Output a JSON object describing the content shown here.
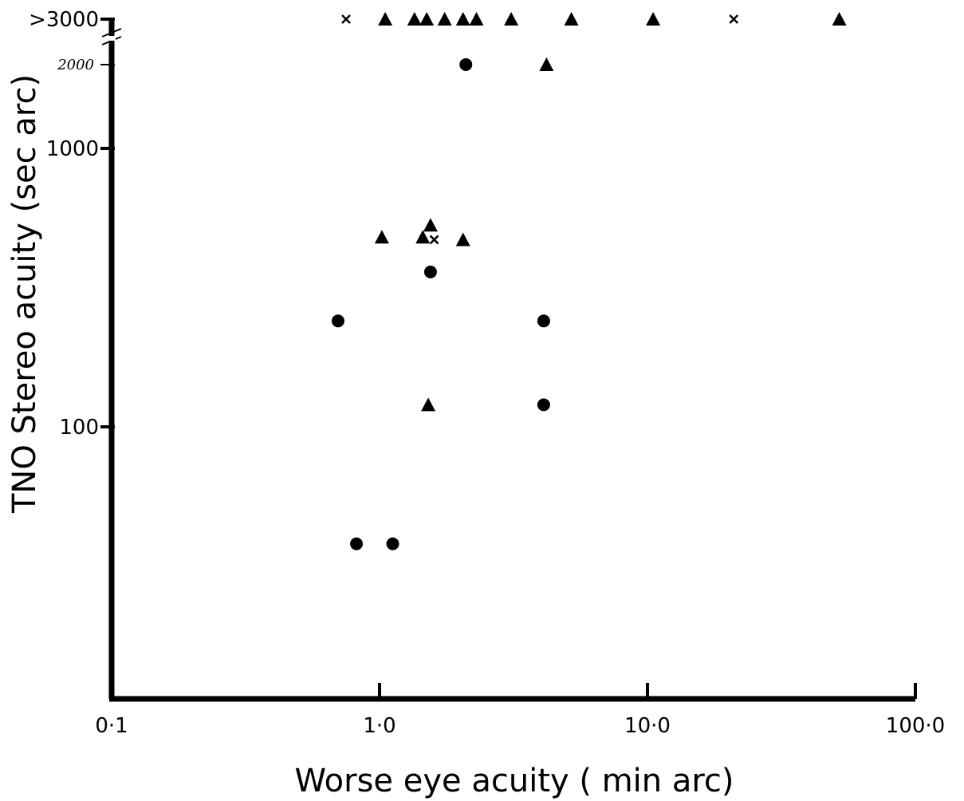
{
  "chart_data": {
    "type": "scatter",
    "title": "",
    "xlabel": "Worse eye acuity ( min arc)",
    "ylabel": "TNO Stereo acuity (sec arc)",
    "x_scale": "log",
    "y_scale": "log",
    "xlim": [
      0.1,
      100
    ],
    "ylim": [
      10,
      3000
    ],
    "x_ticks": [
      {
        "value": 0.1,
        "label": "0·1"
      },
      {
        "value": 1,
        "label": "1·0"
      },
      {
        "value": 10,
        "label": "10·0"
      },
      {
        "value": 100,
        "label": "100·0"
      }
    ],
    "y_ticks": [
      {
        "value": 100,
        "label": "100"
      },
      {
        "value": 1000,
        "label": "1000"
      },
      {
        "value": 2000,
        "label": "2000"
      },
      {
        "value": 3000,
        "label": ">3000"
      }
    ],
    "y_axis_break": true,
    "series": [
      {
        "marker": "circle",
        "points": [
          {
            "x": 2.1,
            "y": 2000
          },
          {
            "x": 1.55,
            "y": 360
          },
          {
            "x": 0.7,
            "y": 240
          },
          {
            "x": 4.1,
            "y": 240
          },
          {
            "x": 4.1,
            "y": 120
          },
          {
            "x": 0.82,
            "y": 38
          },
          {
            "x": 1.12,
            "y": 38
          }
        ]
      },
      {
        "marker": "triangle",
        "points": [
          {
            "x": 1.05,
            "y": 3000
          },
          {
            "x": 1.35,
            "y": 3000
          },
          {
            "x": 1.5,
            "y": 3000
          },
          {
            "x": 1.75,
            "y": 3000
          },
          {
            "x": 2.05,
            "y": 3000
          },
          {
            "x": 2.3,
            "y": 3000
          },
          {
            "x": 3.1,
            "y": 3000
          },
          {
            "x": 5.2,
            "y": 3000
          },
          {
            "x": 10.5,
            "y": 3000
          },
          {
            "x": 52,
            "y": 3000
          },
          {
            "x": 4.2,
            "y": 2000
          },
          {
            "x": 1.02,
            "y": 480
          },
          {
            "x": 1.45,
            "y": 480
          },
          {
            "x": 1.55,
            "y": 530
          },
          {
            "x": 2.05,
            "y": 470
          },
          {
            "x": 1.52,
            "y": 120
          }
        ]
      },
      {
        "marker": "x",
        "points": [
          {
            "x": 0.75,
            "y": 3000
          },
          {
            "x": 21,
            "y": 3000
          },
          {
            "x": 1.6,
            "y": 470
          }
        ]
      }
    ]
  }
}
